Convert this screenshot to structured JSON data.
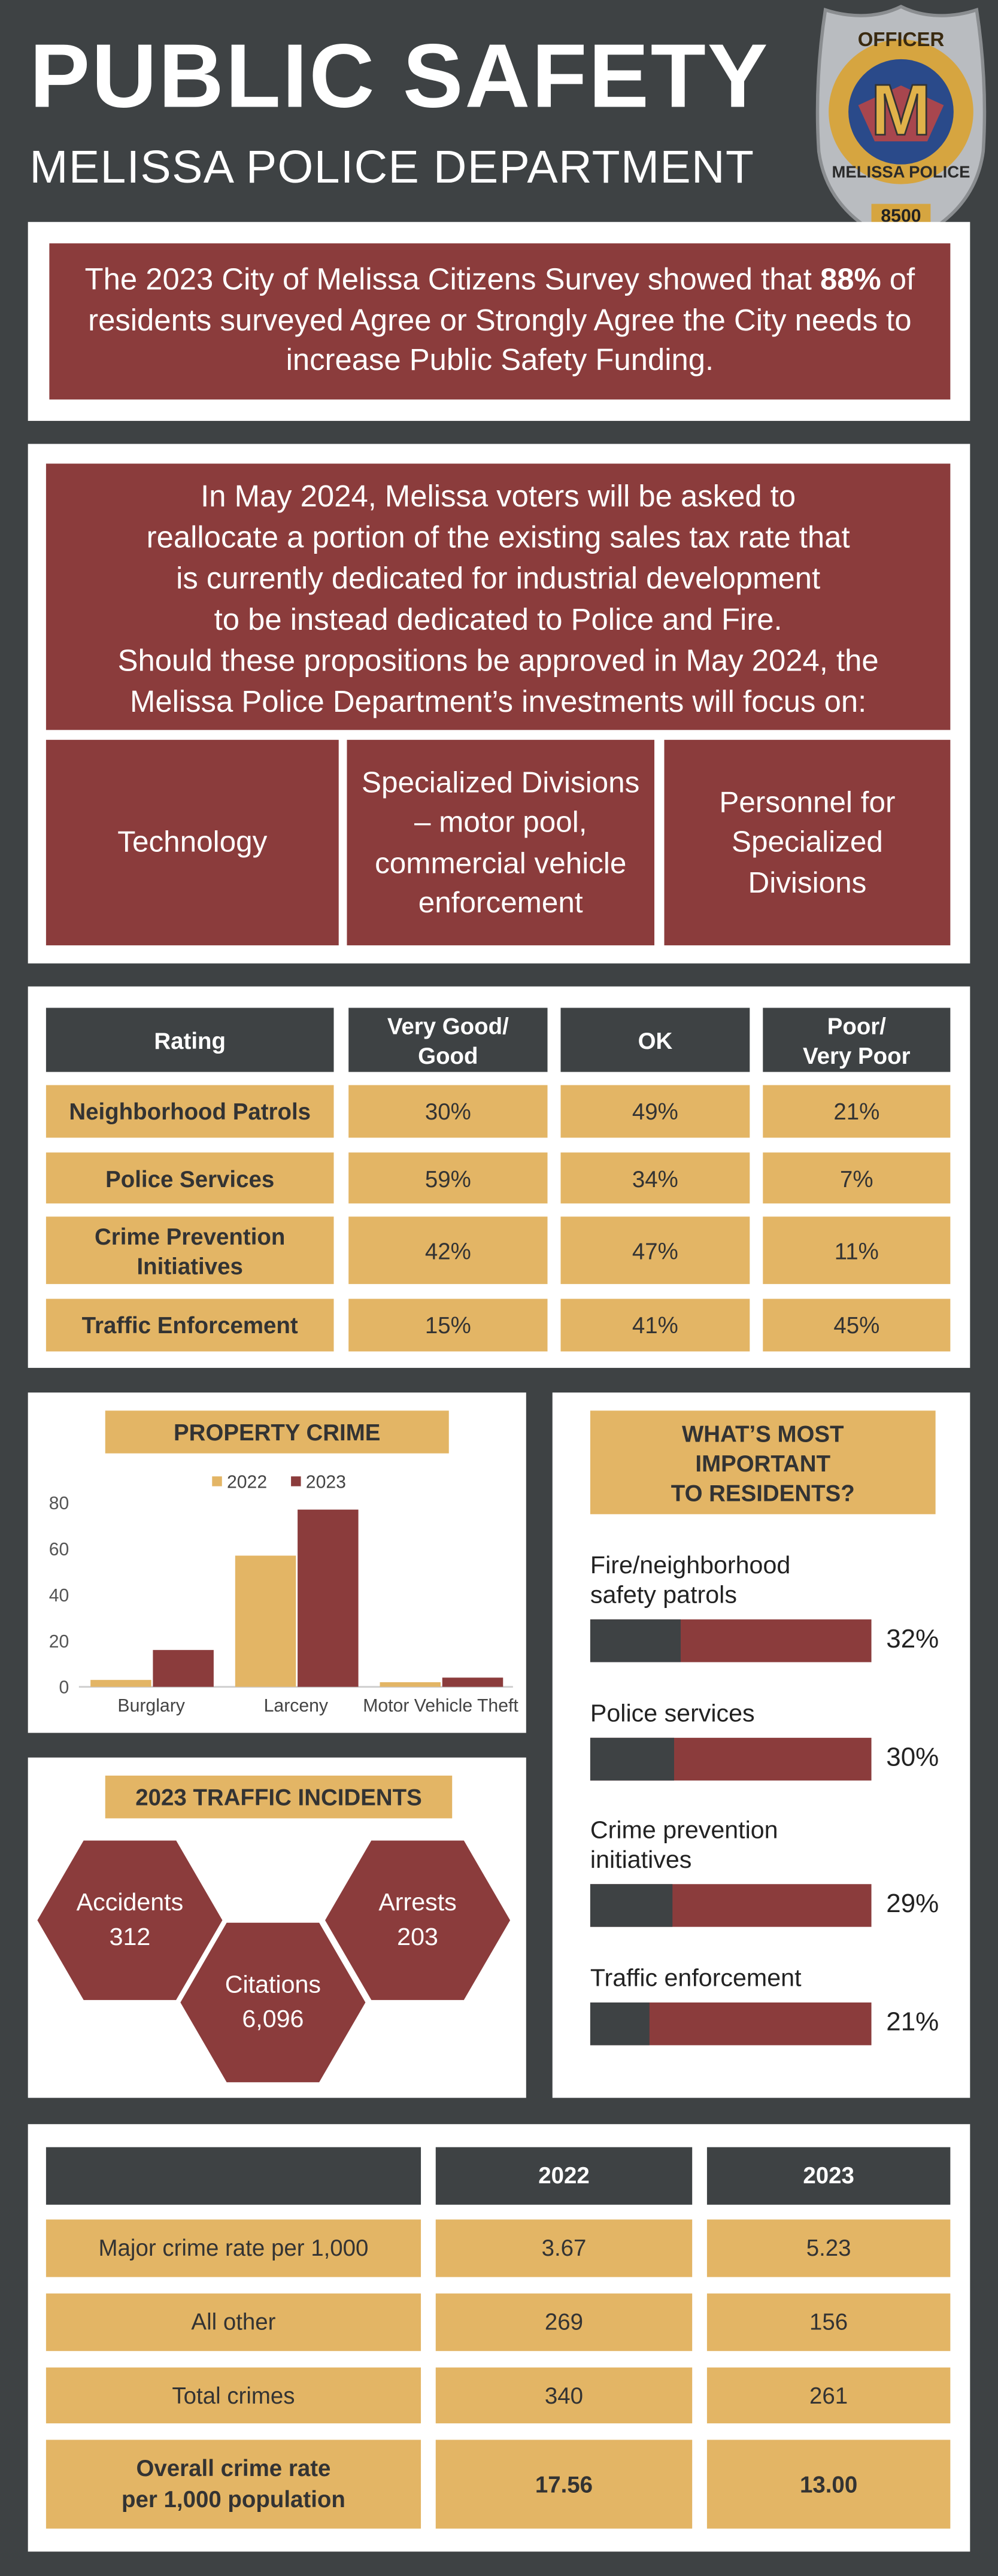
{
  "header": {
    "title": "PUBLIC SAFETY",
    "subtitle": "MELISSA POLICE DEPARTMENT"
  },
  "badge": {
    "top": "OFFICER",
    "letter": "M",
    "bottom": "MELISSA POLICE",
    "number": "8500"
  },
  "survey": {
    "before": "The 2023 City of Melissa Citizens Survey showed that",
    "highlight": "88%",
    "after": "of residents surveyed Agree or Strongly Agree the City needs to increase Public Safety Funding."
  },
  "proposition": {
    "lines": [
      "In May 2024, Melissa voters will be asked to",
      "reallocate a portion of the existing sales tax rate that",
      "is currently dedicated for industrial development",
      "to be instead dedicated to Police and Fire.",
      "Should these propositions be approved in May 2024, the",
      "Melissa Police Department’s investments will focus on:"
    ],
    "focus": [
      "Technology",
      "Specialized Divisions\n– motor pool,\ncommercial vehicle\nenforcement",
      "Personnel for\nSpecialized\nDivisions"
    ]
  },
  "ratings": {
    "columns": [
      "Rating",
      "Very Good/\nGood",
      "OK",
      "Poor/\nVery Poor"
    ],
    "rows": [
      [
        "Neighborhood Patrols",
        "30%",
        "49%",
        "21%"
      ],
      [
        "Police Services",
        "59%",
        "34%",
        "7%"
      ],
      [
        "Crime Prevention\nInitiatives",
        "42%",
        "47%",
        "11%"
      ],
      [
        "Traffic Enforcement",
        "15%",
        "41%",
        "45%"
      ]
    ]
  },
  "chart_data": {
    "type": "bar",
    "title": "PROPERTY CRIME",
    "categories": [
      "Burglary",
      "Larceny",
      "Motor Vehicle Theft"
    ],
    "series": [
      {
        "name": "2022",
        "color": "#e3b565",
        "values": [
          3,
          57,
          2
        ]
      },
      {
        "name": "2023",
        "color": "#8b3c3c",
        "values": [
          16,
          77,
          4
        ]
      }
    ],
    "ylim": [
      0,
      80
    ],
    "yticks": [
      0,
      20,
      40,
      60,
      80
    ],
    "grid": false,
    "legend": "top"
  },
  "traffic": {
    "title": "2023 TRAFFIC INCIDENTS",
    "items": [
      {
        "label": "Accidents",
        "value": "312"
      },
      {
        "label": "Citations",
        "value": "6,096"
      },
      {
        "label": "Arrests",
        "value": "203"
      }
    ]
  },
  "important": {
    "title": "WHAT’S MOST\nIMPORTANT\nTO RESIDENTS?",
    "items": [
      {
        "label": "Fire/neighborhood\nsafety patrols",
        "value": 32,
        "value_label": "32%"
      },
      {
        "label": "Police services",
        "value": 30,
        "value_label": "30%"
      },
      {
        "label": "Crime prevention\ninitiatives",
        "value": 29,
        "value_label": "29%"
      },
      {
        "label": "Traffic enforcement",
        "value": 21,
        "value_label": "21%"
      }
    ]
  },
  "crimes": {
    "columns": [
      "2022",
      "2023"
    ],
    "rows": [
      [
        "Major crime rate per 1,000",
        "3.67",
        "5.23"
      ],
      [
        "All other",
        "269",
        "156"
      ],
      [
        "Total crimes",
        "340",
        "261"
      ],
      [
        "Overall crime rate\nper 1,000 population",
        "17.56",
        "13.00"
      ]
    ]
  }
}
